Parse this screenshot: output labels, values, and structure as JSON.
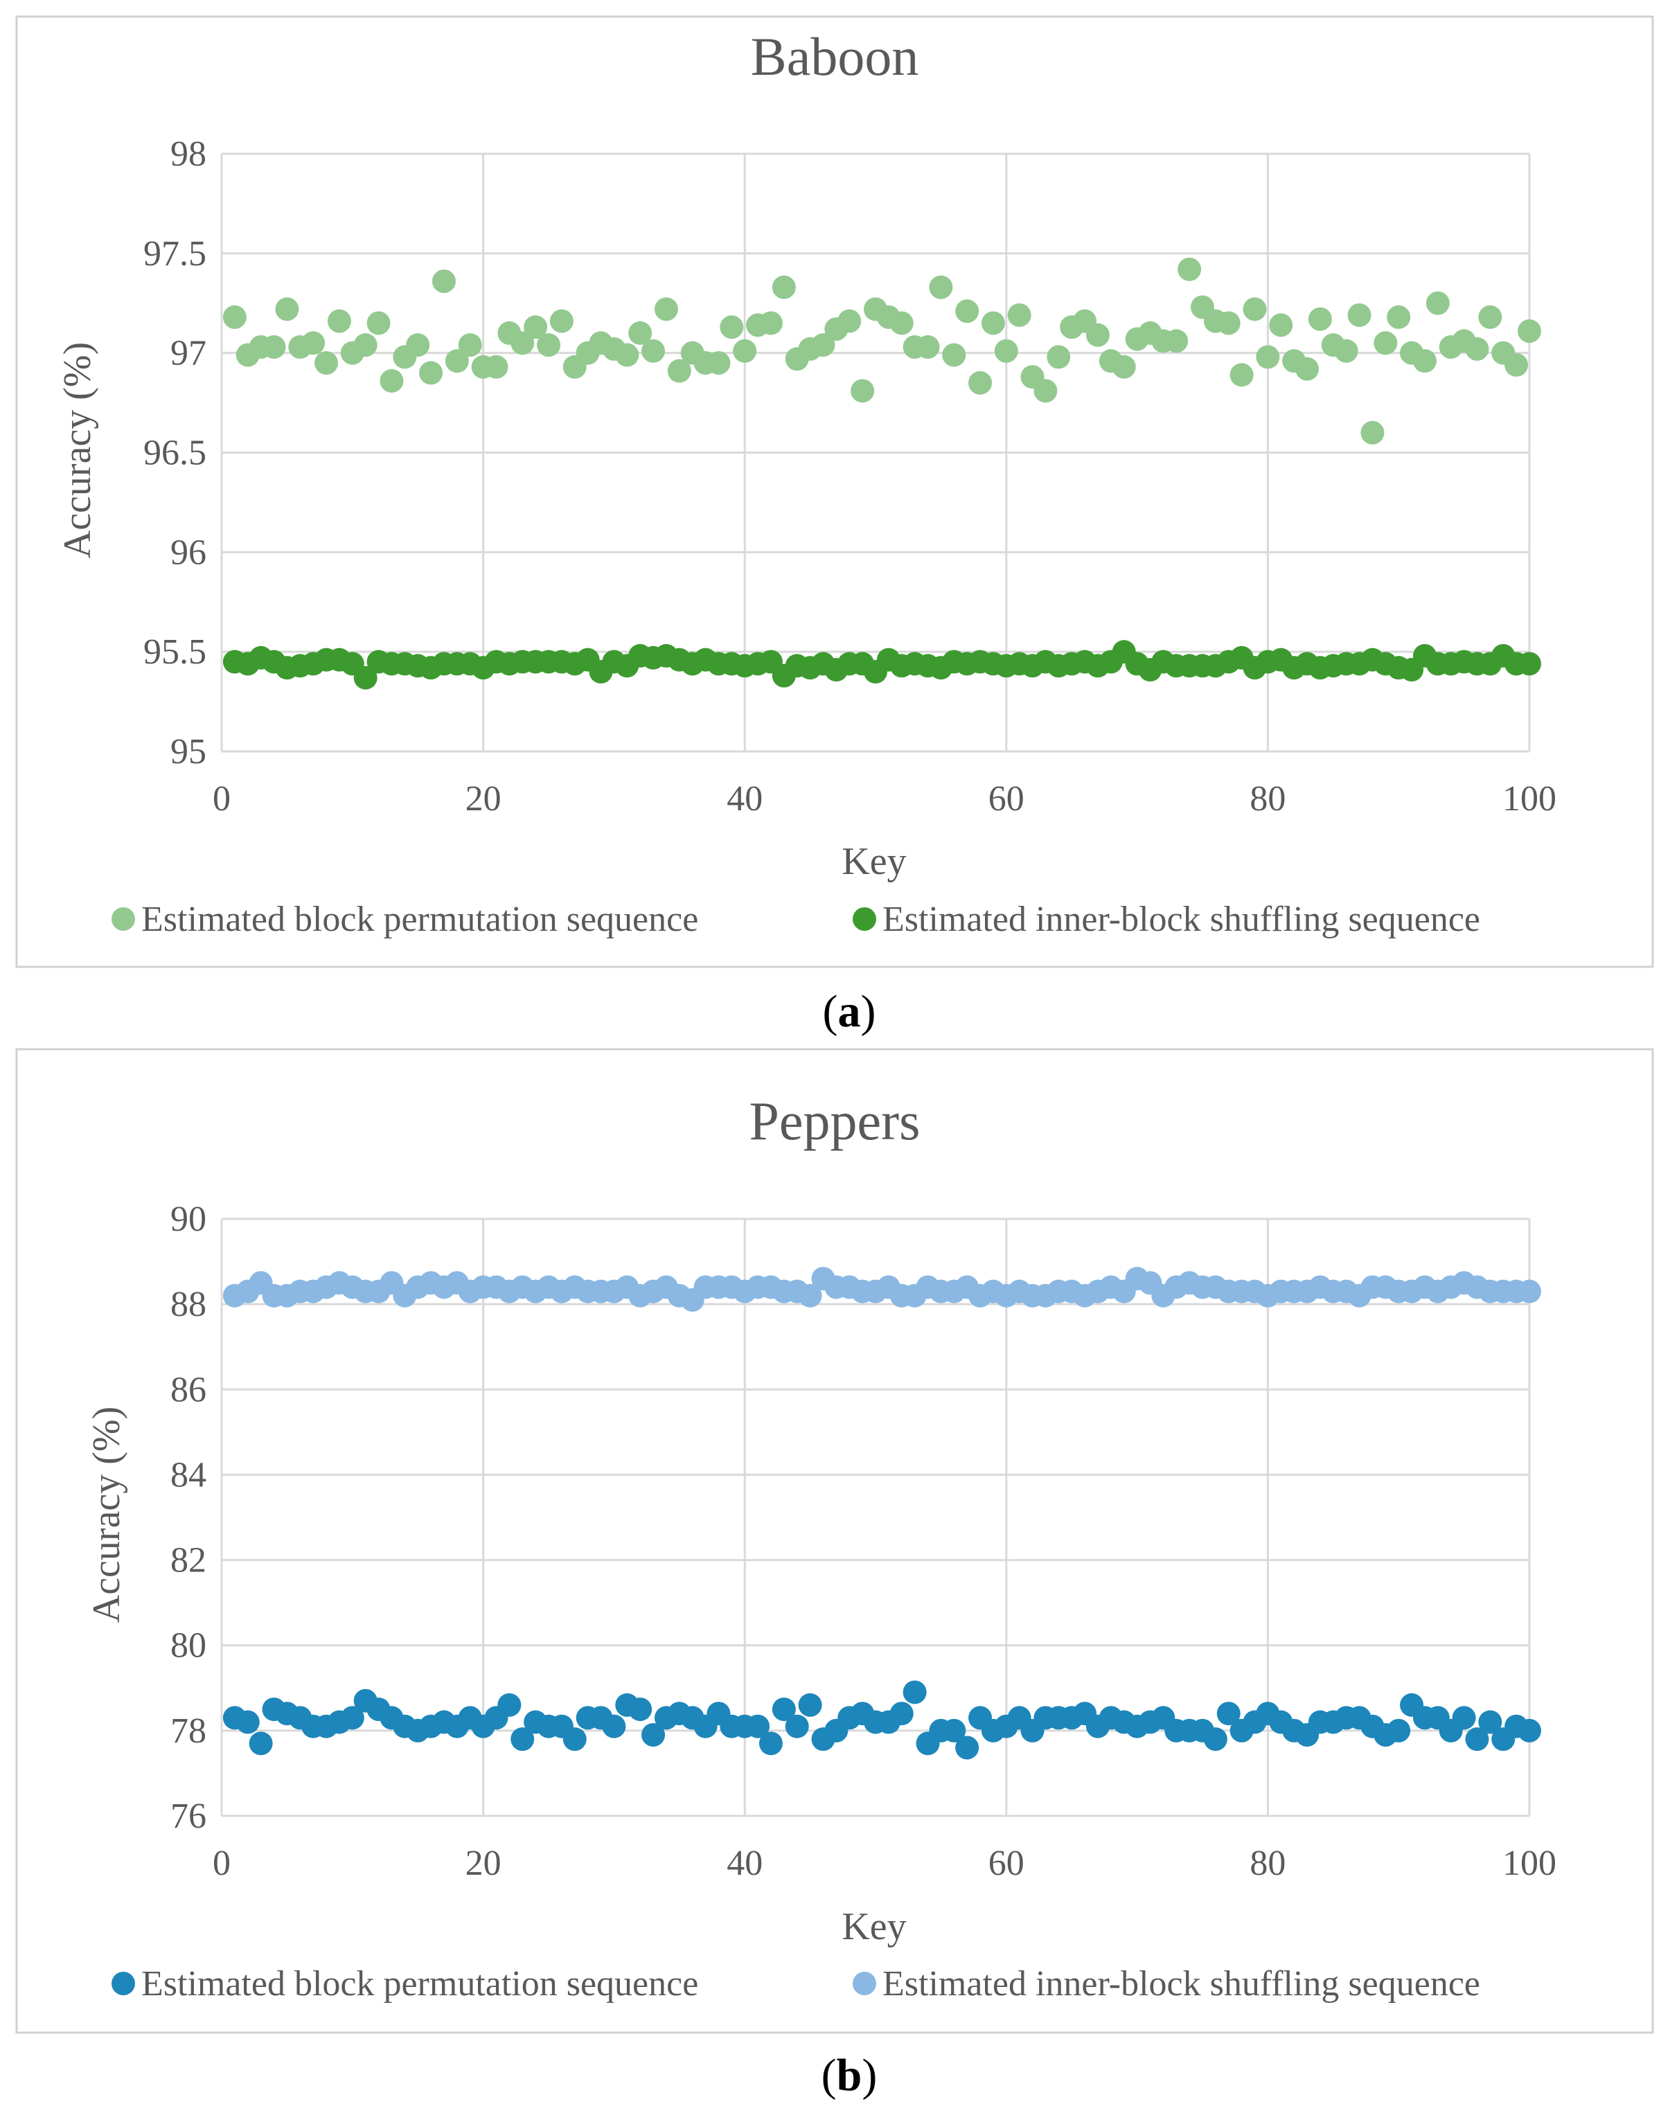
{
  "colors": {
    "baboon_block_permutation": "#93c98f",
    "baboon_inner_block": "#3c9a2e",
    "peppers_block_permutation": "#1d86ba",
    "peppers_inner_block": "#8ab8e3",
    "grid": "#d9d9d9",
    "frame": "#d0d0d0",
    "text": "#595959"
  },
  "panels": [
    {
      "label_open": "(",
      "label": "a",
      "label_close": ")"
    },
    {
      "label_open": "(",
      "label": "b",
      "label_close": ")"
    }
  ],
  "chart_data": [
    {
      "type": "scatter",
      "title": "Baboon",
      "xlabel": "Key",
      "ylabel": "Accuracy (%)",
      "xlim": [
        0,
        100
      ],
      "ylim": [
        95,
        98
      ],
      "xticks": [
        0,
        20,
        40,
        60,
        80,
        100
      ],
      "yticks": [
        95,
        95.5,
        96,
        96.5,
        97,
        97.5,
        98
      ],
      "xtick_labels": [
        "0",
        "20",
        "40",
        "60",
        "80",
        "100"
      ],
      "ytick_labels": [
        "95",
        "95.5",
        "96",
        "96.5",
        "97",
        "97.5",
        "98"
      ],
      "grid": true,
      "legend_position": "bottom",
      "series": [
        {
          "name": "Estimated block permutation sequence",
          "color": "#93c98f",
          "x": [
            1,
            2,
            3,
            4,
            5,
            6,
            7,
            8,
            9,
            10,
            11,
            12,
            13,
            14,
            15,
            16,
            17,
            18,
            19,
            20,
            21,
            22,
            23,
            24,
            25,
            26,
            27,
            28,
            29,
            30,
            31,
            32,
            33,
            34,
            35,
            36,
            37,
            38,
            39,
            40,
            41,
            42,
            43,
            44,
            45,
            46,
            47,
            48,
            49,
            50,
            51,
            52,
            53,
            54,
            55,
            56,
            57,
            58,
            59,
            60,
            61,
            62,
            63,
            64,
            65,
            66,
            67,
            68,
            69,
            70,
            71,
            72,
            73,
            74,
            75,
            76,
            77,
            78,
            79,
            80,
            81,
            82,
            83,
            84,
            85,
            86,
            87,
            88,
            89,
            90,
            91,
            92,
            93,
            94,
            95,
            96,
            97,
            98,
            99,
            100
          ],
          "values": [
            97.18,
            96.99,
            97.03,
            97.03,
            97.22,
            97.03,
            97.05,
            96.95,
            97.16,
            97.0,
            97.04,
            97.15,
            96.86,
            96.98,
            97.04,
            96.9,
            97.36,
            96.96,
            97.04,
            96.93,
            96.93,
            97.1,
            97.05,
            97.13,
            97.04,
            97.16,
            96.93,
            97.0,
            97.05,
            97.02,
            96.99,
            97.1,
            97.01,
            97.22,
            96.91,
            97.0,
            96.95,
            96.95,
            97.13,
            97.01,
            97.14,
            97.15,
            97.33,
            96.97,
            97.02,
            97.04,
            97.12,
            97.16,
            96.81,
            97.22,
            97.18,
            97.15,
            97.03,
            97.03,
            97.33,
            96.99,
            97.21,
            96.85,
            97.15,
            97.01,
            97.19,
            96.88,
            96.81,
            96.98,
            97.13,
            97.16,
            97.09,
            96.96,
            96.93,
            97.07,
            97.1,
            97.06,
            97.06,
            97.42,
            97.23,
            97.16,
            97.15,
            96.89,
            97.22,
            96.98,
            97.14,
            96.96,
            96.92,
            97.17,
            97.04,
            97.01,
            97.19,
            96.6,
            97.05,
            97.18,
            97.0,
            96.96,
            97.25,
            97.03,
            97.06,
            97.02,
            97.18,
            97.0,
            96.94,
            97.11
          ]
        },
        {
          "name": "Estimated inner-block shuffling sequence",
          "color": "#3c9a2e",
          "x": [
            1,
            2,
            3,
            4,
            5,
            6,
            7,
            8,
            9,
            10,
            11,
            12,
            13,
            14,
            15,
            16,
            17,
            18,
            19,
            20,
            21,
            22,
            23,
            24,
            25,
            26,
            27,
            28,
            29,
            30,
            31,
            32,
            33,
            34,
            35,
            36,
            37,
            38,
            39,
            40,
            41,
            42,
            43,
            44,
            45,
            46,
            47,
            48,
            49,
            50,
            51,
            52,
            53,
            54,
            55,
            56,
            57,
            58,
            59,
            60,
            61,
            62,
            63,
            64,
            65,
            66,
            67,
            68,
            69,
            70,
            71,
            72,
            73,
            74,
            75,
            76,
            77,
            78,
            79,
            80,
            81,
            82,
            83,
            84,
            85,
            86,
            87,
            88,
            89,
            90,
            91,
            92,
            93,
            94,
            95,
            96,
            97,
            98,
            99,
            100
          ],
          "values": [
            95.45,
            95.44,
            95.47,
            95.45,
            95.42,
            95.43,
            95.44,
            95.46,
            95.46,
            95.44,
            95.37,
            95.45,
            95.44,
            95.44,
            95.43,
            95.42,
            95.44,
            95.44,
            95.44,
            95.42,
            95.45,
            95.44,
            95.45,
            95.45,
            95.45,
            95.45,
            95.44,
            95.46,
            95.4,
            95.45,
            95.43,
            95.48,
            95.47,
            95.48,
            95.46,
            95.44,
            95.46,
            95.44,
            95.44,
            95.43,
            95.44,
            95.45,
            95.38,
            95.43,
            95.42,
            95.44,
            95.41,
            95.44,
            95.44,
            95.4,
            95.46,
            95.43,
            95.44,
            95.43,
            95.42,
            95.45,
            95.44,
            95.45,
            95.44,
            95.43,
            95.44,
            95.43,
            95.45,
            95.43,
            95.44,
            95.45,
            95.43,
            95.45,
            95.5,
            95.44,
            95.41,
            95.45,
            95.43,
            95.43,
            95.43,
            95.43,
            95.45,
            95.47,
            95.42,
            95.45,
            95.46,
            95.42,
            95.44,
            95.42,
            95.43,
            95.44,
            95.44,
            95.46,
            95.44,
            95.42,
            95.41,
            95.48,
            95.44,
            95.44,
            95.45,
            95.44,
            95.44,
            95.48,
            95.44,
            95.44
          ]
        }
      ]
    },
    {
      "type": "scatter",
      "title": "Peppers",
      "xlabel": "Key",
      "ylabel": "Accuracy (%)",
      "xlim": [
        0,
        100
      ],
      "ylim": [
        76,
        90
      ],
      "xticks": [
        0,
        20,
        40,
        60,
        80,
        100
      ],
      "yticks": [
        76,
        78,
        80,
        82,
        84,
        86,
        88,
        90
      ],
      "xtick_labels": [
        "0",
        "20",
        "40",
        "60",
        "80",
        "100"
      ],
      "ytick_labels": [
        "76",
        "78",
        "80",
        "82",
        "84",
        "86",
        "88",
        "90"
      ],
      "grid": true,
      "legend_position": "bottom",
      "series": [
        {
          "name": "Estimated block permutation sequence",
          "color": "#1d86ba",
          "x": [
            1,
            2,
            3,
            4,
            5,
            6,
            7,
            8,
            9,
            10,
            11,
            12,
            13,
            14,
            15,
            16,
            17,
            18,
            19,
            20,
            21,
            22,
            23,
            24,
            25,
            26,
            27,
            28,
            29,
            30,
            31,
            32,
            33,
            34,
            35,
            36,
            37,
            38,
            39,
            40,
            41,
            42,
            43,
            44,
            45,
            46,
            47,
            48,
            49,
            50,
            51,
            52,
            53,
            54,
            55,
            56,
            57,
            58,
            59,
            60,
            61,
            62,
            63,
            64,
            65,
            66,
            67,
            68,
            69,
            70,
            71,
            72,
            73,
            74,
            75,
            76,
            77,
            78,
            79,
            80,
            81,
            82,
            83,
            84,
            85,
            86,
            87,
            88,
            89,
            90,
            91,
            92,
            93,
            94,
            95,
            96,
            97,
            98,
            99,
            100
          ],
          "values": [
            78.3,
            78.2,
            77.7,
            78.5,
            78.4,
            78.3,
            78.1,
            78.1,
            78.2,
            78.3,
            78.7,
            78.5,
            78.3,
            78.1,
            78.0,
            78.1,
            78.2,
            78.1,
            78.3,
            78.1,
            78.3,
            78.6,
            77.8,
            78.2,
            78.1,
            78.1,
            77.8,
            78.3,
            78.3,
            78.1,
            78.6,
            78.5,
            77.9,
            78.3,
            78.4,
            78.3,
            78.1,
            78.4,
            78.1,
            78.1,
            78.1,
            77.7,
            78.5,
            78.1,
            78.6,
            77.8,
            78.0,
            78.3,
            78.4,
            78.2,
            78.2,
            78.4,
            78.9,
            77.7,
            78.0,
            78.0,
            77.6,
            78.3,
            78.0,
            78.1,
            78.3,
            78.0,
            78.3,
            78.3,
            78.3,
            78.4,
            78.1,
            78.3,
            78.2,
            78.1,
            78.2,
            78.3,
            78.0,
            78.0,
            78.0,
            77.8,
            78.4,
            78.0,
            78.2,
            78.4,
            78.2,
            78.0,
            77.9,
            78.2,
            78.2,
            78.3,
            78.3,
            78.1,
            77.9,
            78.0,
            78.6,
            78.3,
            78.3,
            78.0,
            78.3,
            77.8,
            78.2,
            77.8,
            78.1,
            78.0
          ]
        },
        {
          "name": "Estimated inner-block shuffling sequence",
          "color": "#8ab8e3",
          "x": [
            1,
            2,
            3,
            4,
            5,
            6,
            7,
            8,
            9,
            10,
            11,
            12,
            13,
            14,
            15,
            16,
            17,
            18,
            19,
            20,
            21,
            22,
            23,
            24,
            25,
            26,
            27,
            28,
            29,
            30,
            31,
            32,
            33,
            34,
            35,
            36,
            37,
            38,
            39,
            40,
            41,
            42,
            43,
            44,
            45,
            46,
            47,
            48,
            49,
            50,
            51,
            52,
            53,
            54,
            55,
            56,
            57,
            58,
            59,
            60,
            61,
            62,
            63,
            64,
            65,
            66,
            67,
            68,
            69,
            70,
            71,
            72,
            73,
            74,
            75,
            76,
            77,
            78,
            79,
            80,
            81,
            82,
            83,
            84,
            85,
            86,
            87,
            88,
            89,
            90,
            91,
            92,
            93,
            94,
            95,
            96,
            97,
            98,
            99,
            100
          ],
          "values": [
            88.2,
            88.3,
            88.5,
            88.2,
            88.2,
            88.3,
            88.3,
            88.4,
            88.5,
            88.4,
            88.3,
            88.3,
            88.5,
            88.2,
            88.4,
            88.5,
            88.4,
            88.5,
            88.3,
            88.4,
            88.4,
            88.3,
            88.4,
            88.3,
            88.4,
            88.3,
            88.4,
            88.3,
            88.3,
            88.3,
            88.4,
            88.2,
            88.3,
            88.4,
            88.2,
            88.1,
            88.4,
            88.4,
            88.4,
            88.3,
            88.4,
            88.4,
            88.3,
            88.3,
            88.2,
            88.6,
            88.4,
            88.4,
            88.3,
            88.3,
            88.4,
            88.2,
            88.2,
            88.4,
            88.3,
            88.3,
            88.4,
            88.2,
            88.3,
            88.2,
            88.3,
            88.2,
            88.2,
            88.3,
            88.3,
            88.2,
            88.3,
            88.4,
            88.3,
            88.6,
            88.5,
            88.2,
            88.4,
            88.5,
            88.4,
            88.4,
            88.3,
            88.3,
            88.3,
            88.2,
            88.3,
            88.3,
            88.3,
            88.4,
            88.3,
            88.3,
            88.2,
            88.4,
            88.4,
            88.3,
            88.3,
            88.4,
            88.3,
            88.4,
            88.5,
            88.4,
            88.3,
            88.3,
            88.3,
            88.3
          ]
        }
      ]
    }
  ]
}
